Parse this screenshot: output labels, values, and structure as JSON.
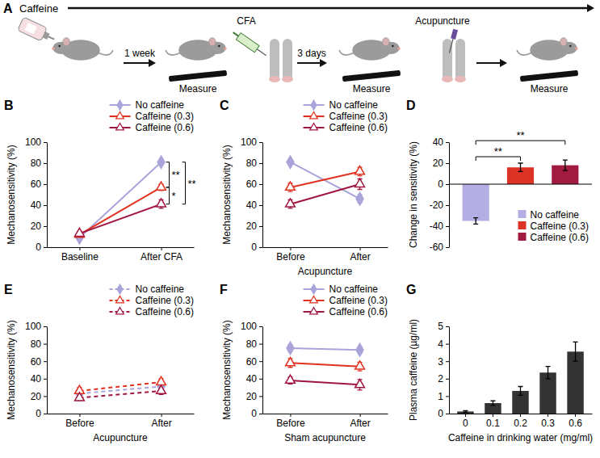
{
  "diagram": {
    "panel": "A",
    "caffeine": "Caffeine",
    "first_interval": "1 week",
    "injection": "CFA",
    "second_interval": "3 days",
    "treatment": "Acupuncture",
    "measure": [
      "Measure",
      "Measure",
      "Measure"
    ]
  },
  "chart_data": [
    {
      "panel": "B",
      "type": "line",
      "ylabel": "Mechanosensitivity (%)",
      "categories": [
        "Baseline",
        "After CFA"
      ],
      "ylim": [
        0,
        100
      ],
      "yticks": [
        0,
        20,
        40,
        60,
        80,
        100
      ],
      "line_style": "solid",
      "legend": "above",
      "series": [
        {
          "name": "No caffeine",
          "color": "#a9a4d9",
          "marker": "diamond",
          "values": [
            9,
            81
          ],
          "errors": [
            2,
            2
          ]
        },
        {
          "name": "Caffeine (0.3)",
          "color": "#e0321f",
          "marker": "triangle-open",
          "values": [
            12,
            57
          ],
          "errors": [
            2,
            3
          ]
        },
        {
          "name": "Caffeine (0.6)",
          "color": "#a0163f",
          "marker": "triangle-open",
          "values": [
            13,
            41
          ],
          "errors": [
            2,
            4
          ]
        }
      ],
      "annotations": [
        {
          "text": "**",
          "between": [
            "No caffeine",
            "Caffeine (0.3)"
          ],
          "category": "After CFA"
        },
        {
          "text": "*",
          "between": [
            "Caffeine (0.3)",
            "Caffeine (0.6)"
          ],
          "category": "After CFA"
        },
        {
          "text": "**",
          "between": [
            "No caffeine",
            "Caffeine (0.6)"
          ],
          "category": "After CFA"
        }
      ]
    },
    {
      "panel": "C",
      "type": "line",
      "ylabel": "Mechanosensitivity (%)",
      "xlabel": "Acupuncture",
      "categories": [
        "Before",
        "After"
      ],
      "ylim": [
        0,
        100
      ],
      "yticks": [
        0,
        20,
        40,
        60,
        80,
        100
      ],
      "line_style": "solid",
      "legend": "above",
      "series": [
        {
          "name": "No caffeine",
          "color": "#a9a4d9",
          "marker": "diamond",
          "values": [
            81,
            46
          ],
          "errors": [
            2,
            4
          ]
        },
        {
          "name": "Caffeine (0.3)",
          "color": "#e0321f",
          "marker": "triangle-open",
          "values": [
            57,
            72
          ],
          "errors": [
            4,
            4
          ]
        },
        {
          "name": "Caffeine (0.6)",
          "color": "#a0163f",
          "marker": "triangle-open",
          "values": [
            41,
            60
          ],
          "errors": [
            4,
            5
          ]
        }
      ]
    },
    {
      "panel": "D",
      "type": "bar",
      "ylabel": "Change in sensitivity (%)",
      "categories": [
        "No caffeine",
        "Caffeine (0.3)",
        "Caffeine (0.6)"
      ],
      "values": [
        -35,
        16,
        18
      ],
      "errors": [
        3,
        4,
        5
      ],
      "colors": [
        "#b3aee4",
        "#dc3326",
        "#a11b40"
      ],
      "ylim": [
        -60,
        40
      ],
      "yticks": [
        -60,
        -40,
        -20,
        0,
        20,
        40
      ],
      "legend": "bottom-right",
      "tick_labels": "y",
      "annotations": [
        {
          "text": "**",
          "between": [
            "No caffeine",
            "Caffeine (0.3)"
          ]
        },
        {
          "text": "**",
          "between": [
            "No caffeine",
            "Caffeine (0.6)"
          ]
        }
      ]
    },
    {
      "panel": "E",
      "type": "line",
      "ylabel": "Mechanosensitivity (%)",
      "xlabel": "Acupuncture",
      "categories": [
        "Before",
        "After"
      ],
      "ylim": [
        0,
        100
      ],
      "yticks": [
        0,
        20,
        40,
        60,
        80,
        100
      ],
      "line_style": "dashed",
      "legend": "above",
      "series": [
        {
          "name": "No caffeine",
          "color": "#a9a4d9",
          "marker": "diamond",
          "values": [
            23,
            31
          ],
          "errors": [
            3,
            4
          ]
        },
        {
          "name": "Caffeine (0.3)",
          "color": "#e0321f",
          "marker": "triangle-open",
          "values": [
            26,
            36
          ],
          "errors": [
            4,
            4
          ]
        },
        {
          "name": "Caffeine (0.6)",
          "color": "#a0163f",
          "marker": "triangle-open",
          "values": [
            18,
            26
          ],
          "errors": [
            3,
            4
          ]
        }
      ]
    },
    {
      "panel": "F",
      "type": "line",
      "ylabel": "Mechanosensitivity (%)",
      "xlabel": "Sham acupuncture",
      "categories": [
        "Before",
        "After"
      ],
      "ylim": [
        0,
        100
      ],
      "yticks": [
        0,
        20,
        40,
        60,
        80,
        100
      ],
      "line_style": "solid",
      "legend": "above",
      "series": [
        {
          "name": "No caffeine",
          "color": "#a9a4d9",
          "marker": "diamond",
          "values": [
            75,
            73
          ],
          "errors": [
            4,
            4
          ]
        },
        {
          "name": "Caffeine (0.3)",
          "color": "#e0321f",
          "marker": "triangle-open",
          "values": [
            58,
            54
          ],
          "errors": [
            5,
            5
          ]
        },
        {
          "name": "Caffeine (0.6)",
          "color": "#a0163f",
          "marker": "triangle-open",
          "values": [
            38,
            33
          ],
          "errors": [
            4,
            6
          ]
        }
      ]
    },
    {
      "panel": "G",
      "type": "bar",
      "ylabel": "Plasma caffeine (µg/ml)",
      "xlabel": "Caffeine in drinking water (mg/ml)",
      "categories": [
        "0",
        "0.1",
        "0.2",
        "0.3",
        "0.6"
      ],
      "values": [
        0.12,
        0.6,
        1.3,
        2.35,
        3.55
      ],
      "errors": [
        0.05,
        0.13,
        0.25,
        0.35,
        0.55
      ],
      "color": "#333333",
      "ylim": [
        0,
        5
      ],
      "yticks": [
        0,
        1,
        2,
        3,
        4,
        5
      ]
    }
  ]
}
